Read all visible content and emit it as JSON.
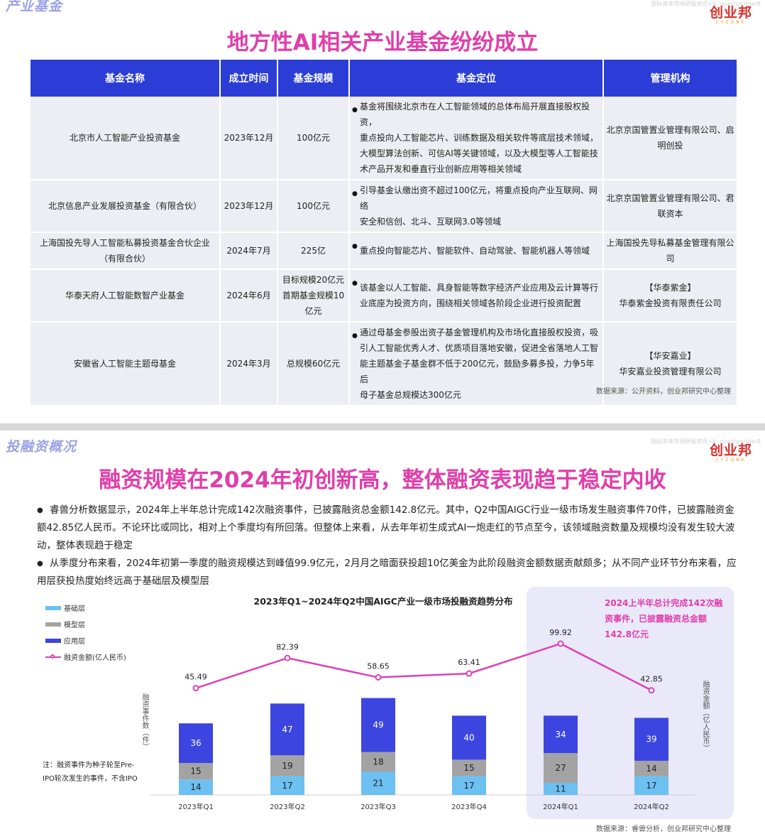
{
  "brand": {
    "logo_text": "创业邦",
    "logo_sub": "CYZONE",
    "watermark": "国际资本市场研报资讯+V: quantpartner8"
  },
  "slide1": {
    "section_tag": "产业基金",
    "title": "地方性AI相关产业基金纷纷成立",
    "columns": [
      "基金名称",
      "成立时间",
      "基金规模",
      "基金定位",
      "管理机构"
    ],
    "rows": [
      {
        "name": "北京市人工智能产业投资基金",
        "date": "2023年12月",
        "size": [
          "100亿元"
        ],
        "position": [
          "基金将围绕北京市在人工智能领域的总体布局开展直接股权投资，",
          "重点投向人工智能芯片、训练数据及相关软件等底层技术领域，",
          "大模型算法创新、可信AI等关键领域，以及大模型等人工智能技",
          "术产品开发和垂直行业创新应用等相关领域"
        ],
        "manager": [
          "北京京国管置业管理有限公司、启",
          "明创投"
        ]
      },
      {
        "name": "北京信息产业发展投资基金（有限合伙）",
        "date": "2023年12月",
        "size": [
          "100亿元"
        ],
        "position": [
          "引导基金认缴出资不超过100亿元，将重点投向产业互联网、网络",
          "安全和信创、北斗、互联网3.0等领域"
        ],
        "manager": [
          "北京京国管置业管理有限公司、君",
          "联资本"
        ]
      },
      {
        "name": "上海国投先导人工智能私募投资基金合伙企业（有限合伙）",
        "date": "2024年7月",
        "size": [
          "225亿"
        ],
        "position": [
          "重点投向智能芯片、智能软件、自动驾驶、智能机器人等领域"
        ],
        "manager": [
          "上海国投先导私募基金管理有限公",
          "司"
        ]
      },
      {
        "name": "华泰天府人工智能数智产业基金",
        "date": "2024年6月",
        "size": [
          "目标规模20亿元",
          "首期基金规模10",
          "亿元"
        ],
        "position": [
          "该基金以人工智能、具身智能等数字经济产业应用及云计算等行",
          "业底座为投资方向，围绕相关领域各阶段企业进行投资配置"
        ],
        "manager": [
          "【华泰紫金】",
          "华泰紫金投资有限责任公司"
        ]
      },
      {
        "name": "安徽省人工智能主题母基金",
        "date": "2024年3月",
        "size": [
          "总规模60亿元"
        ],
        "position": [
          "通过母基金参股出资子基金管理机构及市场化直接股权投资，吸",
          "引人工智能优秀人才、优质项目落地安徽，促进全省落地人工智",
          "能主题基金子基金群不低于200亿元，鼓励多募多投，力争5年后",
          "母子基金总规模达300亿元"
        ],
        "manager": [
          "【华安嘉业】",
          "华安嘉业投资管理有限公司"
        ]
      }
    ],
    "source": "数据来源：公开资料，创业邦研究中心整理"
  },
  "slide2": {
    "section_tag": "投融资概况",
    "title": "融资规模在2024年初创新高，整体融资表现趋于稳定内收",
    "bullets": [
      "睿兽分析数据显示，2024年上半年总计完成142次融资事件，已披露融资总金额142.8亿元。其中，Q2中国AIGC行业一级市场发生融资事件70件，已披露融资金额42.85亿人民币。不论环比或同比，相对上个季度均有所回落。但整体上来看，从去年年初生成式AI一炮走红的节点至今，该领域融资数量及规模均没有发生较大波动，整体表现趋于稳定",
      "从季度分布来看，2024年初第一季度的融资规模达到峰值99.9亿元，2月月之暗面获投超10亿美金为此阶段融资金额数据贡献颇多；从不同产业环节分布来看，应用层获投热度始终远高于基础层及模型层"
    ],
    "callout": "2024上半年总计完成142次融资事件，已披露融资总金额142.8亿元",
    "note": "注：融资事件为种子轮至Pre-IPO轮次发生的事件，不含IPO",
    "source": "数据来源：睿兽分析，创业邦研究中心整理"
  },
  "chart_data": {
    "type": "bar",
    "stacked": true,
    "title": "2023年Q1~2024年Q2中国AIGC产业一级市场投融资趋势分布",
    "categories": [
      "2023年Q1",
      "2023年Q2",
      "2023年Q3",
      "2023年Q4",
      "2024年Q1",
      "2024年Q2"
    ],
    "series": [
      {
        "name": "基础层",
        "color": "#6cc0f2",
        "values": [
          14,
          17,
          21,
          17,
          11,
          17
        ]
      },
      {
        "name": "模型层",
        "color": "#a3a3a3",
        "values": [
          15,
          19,
          18,
          15,
          27,
          14
        ]
      },
      {
        "name": "应用层",
        "color": "#3c45e0",
        "values": [
          36,
          47,
          49,
          40,
          34,
          39
        ]
      }
    ],
    "line_series": {
      "name": "融资金额(亿人民币)",
      "color": "#dd41b6",
      "values": [
        45.49,
        82.39,
        58.65,
        63.41,
        99.92,
        42.85
      ]
    },
    "ylabel_left": "融资事件数（件）",
    "ylabel_right": "融资金额（亿人民币）",
    "highlight": [
      "2024年Q1",
      "2024年Q2"
    ],
    "legend_position": "top-left"
  }
}
